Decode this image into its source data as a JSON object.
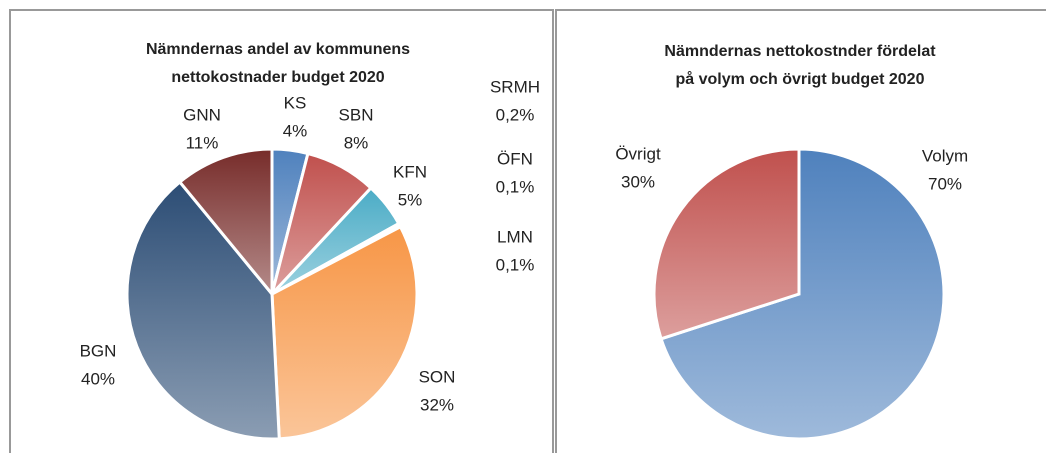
{
  "chart_data": [
    {
      "type": "pie",
      "title": [
        "Nämndernas andel av kommunens",
        "nettokostnader budget 2020"
      ],
      "categories": [
        "KS",
        "SBN",
        "KFN",
        "SRMH",
        "ÖFN",
        "LMN",
        "SON",
        "BGN",
        "GNN"
      ],
      "values": [
        4,
        8,
        5,
        0.2,
        0.1,
        0.1,
        32,
        40,
        11
      ],
      "value_labels": [
        "4%",
        "8%",
        "5%",
        "0,2%",
        "0,1%",
        "0,1%",
        "32%",
        "40%",
        "11%"
      ],
      "colors": [
        "#4f81bd",
        "#c0504d",
        "#4bacc6",
        "#9bbb59",
        "#8064a2",
        "#4bacc6",
        "#f79646",
        "#2c4d75",
        "#772c2a"
      ]
    },
    {
      "type": "pie",
      "title": [
        "Nämndernas nettokostnder fördelat",
        "på volym och övrigt budget 2020"
      ],
      "categories": [
        "Volym",
        "Övrigt"
      ],
      "values": [
        70,
        30
      ],
      "value_labels": [
        "70%",
        "30%"
      ],
      "colors": [
        "#4f81bd",
        "#c0504d"
      ]
    }
  ]
}
